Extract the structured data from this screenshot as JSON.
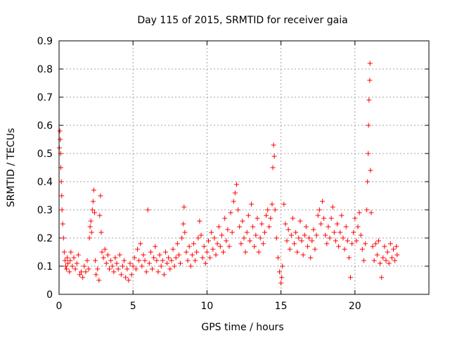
{
  "chart_data": {
    "type": "scatter",
    "title": "Day 115 of 2015, SRMTID for receiver gaia",
    "xlabel": "GPS time / hours",
    "ylabel": "SRMTID / TECUs",
    "xlim": [
      0,
      25
    ],
    "ylim": [
      0,
      0.9
    ],
    "xticks": [
      0,
      5,
      10,
      15,
      20
    ],
    "xtick_labels": [
      "0",
      "5",
      "10",
      "15",
      "20"
    ],
    "yticks": [
      0,
      0.1,
      0.2,
      0.3,
      0.4,
      0.5,
      0.6,
      0.7,
      0.8,
      0.9
    ],
    "ytick_labels": [
      "0",
      "0.1",
      "0.2",
      "0.3",
      "0.4",
      "0.5",
      "0.6",
      "0.7",
      "0.8",
      "0.9"
    ],
    "grid": true,
    "marker": "+",
    "color": "#ff0000",
    "series": [
      {
        "name": "SRMTID",
        "points": [
          [
            0.02,
            0.52
          ],
          [
            0.05,
            0.58
          ],
          [
            0.08,
            0.55
          ],
          [
            0.1,
            0.5
          ],
          [
            0.12,
            0.45
          ],
          [
            0.15,
            0.4
          ],
          [
            0.18,
            0.35
          ],
          [
            0.2,
            0.3
          ],
          [
            0.25,
            0.25
          ],
          [
            0.3,
            0.2
          ],
          [
            0.35,
            0.15
          ],
          [
            0.4,
            0.12
          ],
          [
            0.45,
            0.1
          ],
          [
            0.5,
            0.09
          ],
          [
            0.55,
            0.13
          ],
          [
            0.6,
            0.11
          ],
          [
            0.7,
            0.08
          ],
          [
            0.75,
            0.12
          ],
          [
            0.8,
            0.15
          ],
          [
            0.9,
            0.1
          ],
          [
            1.0,
            0.13
          ],
          [
            1.1,
            0.09
          ],
          [
            1.2,
            0.11
          ],
          [
            1.3,
            0.14
          ],
          [
            1.4,
            0.07
          ],
          [
            1.5,
            0.08
          ],
          [
            1.6,
            0.06
          ],
          [
            1.7,
            0.1
          ],
          [
            1.8,
            0.08
          ],
          [
            1.9,
            0.12
          ],
          [
            2.0,
            0.09
          ],
          [
            2.05,
            0.2
          ],
          [
            2.1,
            0.24
          ],
          [
            2.15,
            0.26
          ],
          [
            2.2,
            0.22
          ],
          [
            2.25,
            0.3
          ],
          [
            2.3,
            0.33
          ],
          [
            2.35,
            0.37
          ],
          [
            2.4,
            0.29
          ],
          [
            2.45,
            0.12
          ],
          [
            2.5,
            0.07
          ],
          [
            2.6,
            0.09
          ],
          [
            2.7,
            0.05
          ],
          [
            2.75,
            0.28
          ],
          [
            2.8,
            0.35
          ],
          [
            2.85,
            0.22
          ],
          [
            2.9,
            0.15
          ],
          [
            3.0,
            0.13
          ],
          [
            3.1,
            0.16
          ],
          [
            3.2,
            0.11
          ],
          [
            3.3,
            0.14
          ],
          [
            3.4,
            0.09
          ],
          [
            3.5,
            0.12
          ],
          [
            3.6,
            0.1
          ],
          [
            3.7,
            0.08
          ],
          [
            3.8,
            0.13
          ],
          [
            3.9,
            0.11
          ],
          [
            4.0,
            0.09
          ],
          [
            4.1,
            0.14
          ],
          [
            4.2,
            0.07
          ],
          [
            4.3,
            0.1
          ],
          [
            4.4,
            0.12
          ],
          [
            4.5,
            0.06
          ],
          [
            4.6,
            0.09
          ],
          [
            4.7,
            0.05
          ],
          [
            4.8,
            0.11
          ],
          [
            4.9,
            0.07
          ],
          [
            5.0,
            0.1
          ],
          [
            5.1,
            0.13
          ],
          [
            5.2,
            0.09
          ],
          [
            5.3,
            0.16
          ],
          [
            5.4,
            0.12
          ],
          [
            5.5,
            0.18
          ],
          [
            5.6,
            0.1
          ],
          [
            5.7,
            0.14
          ],
          [
            5.8,
            0.12
          ],
          [
            5.9,
            0.08
          ],
          [
            6.0,
            0.3
          ],
          [
            6.1,
            0.11
          ],
          [
            6.2,
            0.15
          ],
          [
            6.3,
            0.09
          ],
          [
            6.4,
            0.13
          ],
          [
            6.5,
            0.17
          ],
          [
            6.6,
            0.12
          ],
          [
            6.7,
            0.08
          ],
          [
            6.8,
            0.14
          ],
          [
            6.9,
            0.1
          ],
          [
            7.0,
            0.12
          ],
          [
            7.1,
            0.07
          ],
          [
            7.2,
            0.15
          ],
          [
            7.3,
            0.11
          ],
          [
            7.4,
            0.13
          ],
          [
            7.5,
            0.09
          ],
          [
            7.6,
            0.12
          ],
          [
            7.7,
            0.16
          ],
          [
            7.8,
            0.1
          ],
          [
            7.9,
            0.13
          ],
          [
            8.0,
            0.18
          ],
          [
            8.1,
            0.14
          ],
          [
            8.2,
            0.11
          ],
          [
            8.3,
            0.2
          ],
          [
            8.4,
            0.25
          ],
          [
            8.45,
            0.31
          ],
          [
            8.5,
            0.22
          ],
          [
            8.6,
            0.15
          ],
          [
            8.7,
            0.12
          ],
          [
            8.8,
            0.17
          ],
          [
            8.9,
            0.1
          ],
          [
            9.0,
            0.14
          ],
          [
            9.1,
            0.18
          ],
          [
            9.2,
            0.12
          ],
          [
            9.3,
            0.15
          ],
          [
            9.4,
            0.2
          ],
          [
            9.5,
            0.26
          ],
          [
            9.6,
            0.21
          ],
          [
            9.7,
            0.13
          ],
          [
            9.8,
            0.17
          ],
          [
            9.9,
            0.11
          ],
          [
            10.0,
            0.15
          ],
          [
            10.1,
            0.19
          ],
          [
            10.2,
            0.13
          ],
          [
            10.3,
            0.22
          ],
          [
            10.4,
            0.16
          ],
          [
            10.5,
            0.2
          ],
          [
            10.6,
            0.14
          ],
          [
            10.7,
            0.18
          ],
          [
            10.8,
            0.24
          ],
          [
            10.9,
            0.17
          ],
          [
            11.0,
            0.21
          ],
          [
            11.1,
            0.15
          ],
          [
            11.2,
            0.27
          ],
          [
            11.3,
            0.19
          ],
          [
            11.4,
            0.23
          ],
          [
            11.5,
            0.17
          ],
          [
            11.6,
            0.29
          ],
          [
            11.7,
            0.22
          ],
          [
            11.8,
            0.33
          ],
          [
            11.9,
            0.36
          ],
          [
            12.0,
            0.39
          ],
          [
            12.1,
            0.3
          ],
          [
            12.2,
            0.24
          ],
          [
            12.3,
            0.18
          ],
          [
            12.4,
            0.26
          ],
          [
            12.5,
            0.2
          ],
          [
            12.6,
            0.15
          ],
          [
            12.7,
            0.22
          ],
          [
            12.8,
            0.28
          ],
          [
            12.9,
            0.19
          ],
          [
            13.0,
            0.32
          ],
          [
            13.1,
            0.24
          ],
          [
            13.2,
            0.17
          ],
          [
            13.3,
            0.21
          ],
          [
            13.4,
            0.27
          ],
          [
            13.5,
            0.15
          ],
          [
            13.6,
            0.2
          ],
          [
            13.7,
            0.25
          ],
          [
            13.8,
            0.18
          ],
          [
            13.9,
            0.22
          ],
          [
            14.0,
            0.28
          ],
          [
            14.1,
            0.3
          ],
          [
            14.2,
            0.24
          ],
          [
            14.3,
            0.27
          ],
          [
            14.4,
            0.32
          ],
          [
            14.45,
            0.45
          ],
          [
            14.5,
            0.53
          ],
          [
            14.55,
            0.49
          ],
          [
            14.6,
            0.3
          ],
          [
            14.7,
            0.2
          ],
          [
            14.8,
            0.13
          ],
          [
            14.9,
            0.08
          ],
          [
            15.0,
            0.04
          ],
          [
            15.05,
            0.06
          ],
          [
            15.1,
            0.1
          ],
          [
            15.2,
            0.32
          ],
          [
            15.3,
            0.25
          ],
          [
            15.4,
            0.19
          ],
          [
            15.5,
            0.23
          ],
          [
            15.6,
            0.16
          ],
          [
            15.7,
            0.21
          ],
          [
            15.8,
            0.27
          ],
          [
            15.9,
            0.18
          ],
          [
            16.0,
            0.22
          ],
          [
            16.1,
            0.15
          ],
          [
            16.2,
            0.2
          ],
          [
            16.3,
            0.26
          ],
          [
            16.4,
            0.19
          ],
          [
            16.5,
            0.14
          ],
          [
            16.6,
            0.21
          ],
          [
            16.7,
            0.24
          ],
          [
            16.8,
            0.17
          ],
          [
            16.9,
            0.2
          ],
          [
            17.0,
            0.13
          ],
          [
            17.1,
            0.19
          ],
          [
            17.2,
            0.23
          ],
          [
            17.3,
            0.16
          ],
          [
            17.4,
            0.21
          ],
          [
            17.5,
            0.28
          ],
          [
            17.6,
            0.3
          ],
          [
            17.7,
            0.25
          ],
          [
            17.8,
            0.33
          ],
          [
            17.9,
            0.27
          ],
          [
            18.0,
            0.21
          ],
          [
            18.1,
            0.18
          ],
          [
            18.2,
            0.24
          ],
          [
            18.3,
            0.2
          ],
          [
            18.4,
            0.27
          ],
          [
            18.5,
            0.31
          ],
          [
            18.6,
            0.22
          ],
          [
            18.7,
            0.19
          ],
          [
            18.8,
            0.25
          ],
          [
            18.9,
            0.17
          ],
          [
            19.0,
            0.22
          ],
          [
            19.1,
            0.28
          ],
          [
            19.2,
            0.2
          ],
          [
            19.3,
            0.16
          ],
          [
            19.4,
            0.24
          ],
          [
            19.5,
            0.19
          ],
          [
            19.6,
            0.13
          ],
          [
            19.7,
            0.06
          ],
          [
            19.8,
            0.18
          ],
          [
            19.9,
            0.22
          ],
          [
            20.0,
            0.27
          ],
          [
            20.1,
            0.19
          ],
          [
            20.2,
            0.24
          ],
          [
            20.3,
            0.29
          ],
          [
            20.4,
            0.21
          ],
          [
            20.5,
            0.16
          ],
          [
            20.6,
            0.12
          ],
          [
            20.7,
            0.18
          ],
          [
            20.8,
            0.3
          ],
          [
            20.85,
            0.4
          ],
          [
            20.9,
            0.5
          ],
          [
            20.92,
            0.6
          ],
          [
            20.95,
            0.69
          ],
          [
            21.0,
            0.76
          ],
          [
            21.02,
            0.82
          ],
          [
            21.05,
            0.44
          ],
          [
            21.1,
            0.29
          ],
          [
            21.2,
            0.17
          ],
          [
            21.3,
            0.12
          ],
          [
            21.4,
            0.18
          ],
          [
            21.5,
            0.14
          ],
          [
            21.6,
            0.19
          ],
          [
            21.7,
            0.11
          ],
          [
            21.8,
            0.06
          ],
          [
            21.9,
            0.13
          ],
          [
            22.0,
            0.17
          ],
          [
            22.1,
            0.12
          ],
          [
            22.2,
            0.15
          ],
          [
            22.3,
            0.11
          ],
          [
            22.4,
            0.18
          ],
          [
            22.5,
            0.13
          ],
          [
            22.6,
            0.16
          ],
          [
            22.7,
            0.12
          ],
          [
            22.8,
            0.17
          ],
          [
            22.85,
            0.14
          ]
        ]
      }
    ]
  }
}
